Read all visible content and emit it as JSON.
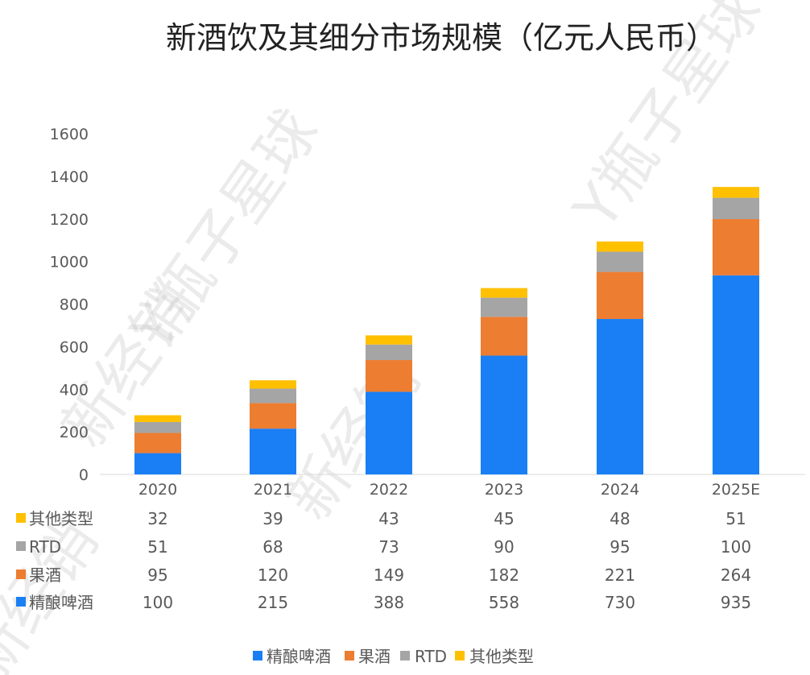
{
  "chart_data": {
    "type": "bar",
    "stacked": true,
    "title": "新酒饮及其细分市场规模（亿元人民币）",
    "categories": [
      "2020",
      "2021",
      "2022",
      "2023",
      "2024",
      "2025E"
    ],
    "series": [
      {
        "name": "精酿啤酒",
        "color": "#1a7ff5",
        "values": [
          100,
          215,
          388,
          558,
          730,
          935
        ]
      },
      {
        "name": "果酒",
        "color": "#ed7d31",
        "values": [
          95,
          120,
          149,
          182,
          221,
          264
        ]
      },
      {
        "name": "RTD",
        "color": "#a5a5a5",
        "values": [
          51,
          68,
          73,
          90,
          95,
          100
        ]
      },
      {
        "name": "其他类型",
        "color": "#ffc000",
        "values": [
          32,
          39,
          43,
          45,
          48,
          51
        ]
      }
    ],
    "table_row_order": [
      "其他类型",
      "RTD",
      "果酒",
      "精酿啤酒"
    ],
    "legend_order": [
      "精酿啤酒",
      "果酒",
      "RTD",
      "其他类型"
    ],
    "y_ticks": [
      "0",
      "200",
      "400",
      "600",
      "800",
      "1000",
      "1200",
      "1400",
      "1600"
    ],
    "ylim": [
      0,
      1600
    ],
    "xlabel": "",
    "ylabel": "",
    "grid": false,
    "legend_position": "bottom",
    "data_table": true
  },
  "watermark": {
    "texts": [
      "新经销",
      "Y瓶子星球",
      "新经销",
      "Y瓶子星球",
      "新经销"
    ]
  }
}
